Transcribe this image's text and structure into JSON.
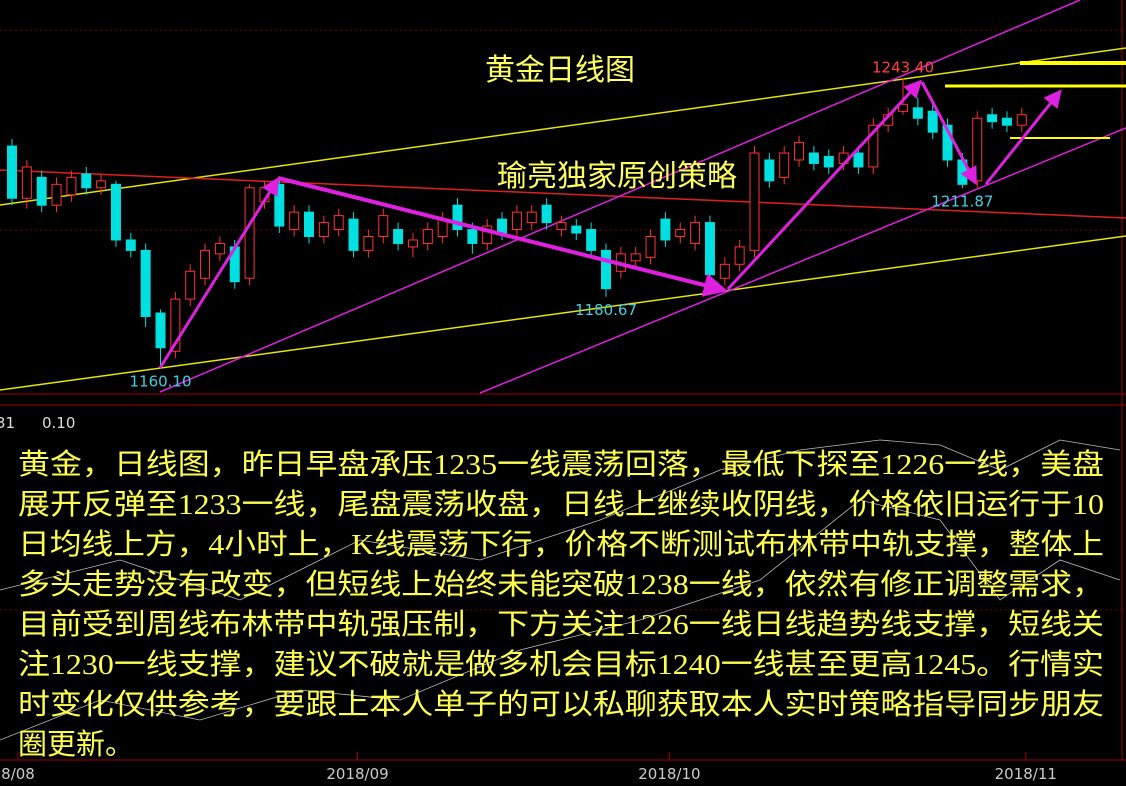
{
  "chart_data": {
    "type": "candlestick",
    "title": "黄金日线图",
    "subtitle": "瑜亮独家原创策略",
    "categories": [
      "8/08",
      null,
      null,
      null,
      null,
      null,
      null,
      null,
      null,
      null,
      null,
      null,
      null,
      null,
      null,
      null,
      null,
      null,
      null,
      null,
      null,
      null,
      null,
      "2018/09",
      null,
      null,
      null,
      null,
      null,
      null,
      null,
      null,
      null,
      null,
      null,
      null,
      null,
      null,
      null,
      null,
      null,
      null,
      null,
      null,
      "2018/10",
      null,
      null,
      null,
      null,
      null,
      null,
      null,
      null,
      null,
      null,
      null,
      null,
      null,
      null,
      null,
      null,
      null,
      null,
      null,
      null,
      null,
      null,
      null,
      "2018/11"
    ],
    "open": [
      1224,
      1209,
      1215,
      1207,
      1210,
      1216,
      1212,
      1213,
      1197,
      1194,
      1176,
      1165,
      1180,
      1186,
      1193,
      1195,
      1186,
      1208,
      1213,
      1200,
      1205,
      1198,
      1200,
      1203,
      1194,
      1198,
      1200,
      1195,
      1196,
      1198,
      1207,
      1200,
      1196,
      1203,
      1200,
      1202,
      1207,
      1200,
      1201,
      1200,
      1194,
      1188,
      1191,
      1192,
      1203,
      1198,
      1196,
      1202,
      1186,
      1190,
      1194,
      1220,
      1215,
      1220,
      1222,
      1221,
      1219,
      1222,
      1218,
      1230,
      1234,
      1235,
      1234,
      1230,
      1220,
      1214,
      1233,
      1232,
      1230
    ],
    "high": [
      1226,
      1220,
      1217,
      1215,
      1217,
      1218,
      1216,
      1214,
      1199,
      1196,
      1177,
      1182,
      1190,
      1196,
      1198,
      1197,
      1213,
      1214,
      1215,
      1207,
      1207,
      1204,
      1206,
      1205,
      1200,
      1206,
      1202,
      1199,
      1202,
      1205,
      1209,
      1202,
      1203,
      1205,
      1207,
      1207,
      1209,
      1204,
      1203,
      1202,
      1196,
      1195,
      1195,
      1200,
      1205,
      1202,
      1204,
      1204,
      1192,
      1197,
      1224,
      1222,
      1224,
      1227,
      1224,
      1223,
      1224,
      1224,
      1232,
      1235,
      1243.4,
      1238,
      1236,
      1232,
      1222,
      1234,
      1235,
      1234,
      1235
    ],
    "low": [
      1207,
      1206,
      1205,
      1205,
      1208,
      1210,
      1210,
      1195,
      1192,
      1172,
      1160.1,
      1163,
      1178,
      1184,
      1191,
      1183,
      1184,
      1206,
      1199,
      1198,
      1196,
      1196,
      1198,
      1192,
      1192,
      1196,
      1194,
      1192,
      1194,
      1196,
      1198,
      1193,
      1194,
      1197,
      1198,
      1200,
      1200,
      1198,
      1197,
      1192,
      1180.67,
      1186,
      1189,
      1190,
      1195,
      1196,
      1194,
      1185,
      1184,
      1188,
      1192,
      1212,
      1213,
      1218,
      1217,
      1216,
      1217,
      1216,
      1216,
      1228,
      1233,
      1230,
      1226,
      1218,
      1211.87,
      1212,
      1229,
      1228,
      1228
    ],
    "close": [
      1209,
      1218,
      1207,
      1213,
      1215,
      1212,
      1214,
      1197,
      1194,
      1175,
      1166,
      1180,
      1188,
      1194,
      1196,
      1185,
      1212,
      1212,
      1201,
      1205,
      1198,
      1202,
      1204,
      1194,
      1198,
      1204,
      1196,
      1197,
      1200,
      1203,
      1200,
      1196,
      1201,
      1199,
      1205,
      1205,
      1202,
      1202,
      1199,
      1194,
      1183,
      1193,
      1193,
      1198,
      1197,
      1200,
      1202,
      1187,
      1190,
      1195,
      1222,
      1214,
      1222,
      1225,
      1219,
      1218,
      1222,
      1218,
      1230,
      1233,
      1236,
      1232,
      1228,
      1220,
      1213,
      1232,
      1231,
      1230,
      1233
    ],
    "up_color": "#ff3232",
    "down_color": "#00e0e0",
    "ylim": [
      1153,
      1266
    ],
    "annotations": [
      {
        "value": 1243.4,
        "label": "1243.40",
        "color": "#ff4040"
      },
      {
        "value": 1211.87,
        "label": "1211.87",
        "color": "#40d0e0"
      },
      {
        "value": 1180.67,
        "label": "1180.67",
        "color": "#40d0e0"
      },
      {
        "value": 1160.1,
        "label": "1160.10",
        "color": "#40d0e0"
      }
    ],
    "indicator_labels": [
      "31",
      "0.10"
    ],
    "commentary": [
      "黄金，日线图，昨日早盘承压1235一线震荡回落，最低下探至1226一线，美盘",
      "展开反弹至1233一线，尾盘震荡收盘，日线上继续收阴线，价格依旧运行于10",
      "日均线上方，4小时上，K线震荡下行，价格不断测试布林带中轨支撑，整体上",
      "多头走势没有改变，但短线上始终未能突破1238一线，依然有修正调整需求，",
      "目前受到周线布林带中轨强压制，下方关注1226一线日线趋势线支撑，短线关",
      "注1230一线支撑，建议不破就是做多机会目标1240一线甚至更高1245。行情实",
      "时变化仅供参考，要跟上本人单子的可以私聊获取本人实时策略指导同步朋友",
      "圈更新。"
    ]
  }
}
